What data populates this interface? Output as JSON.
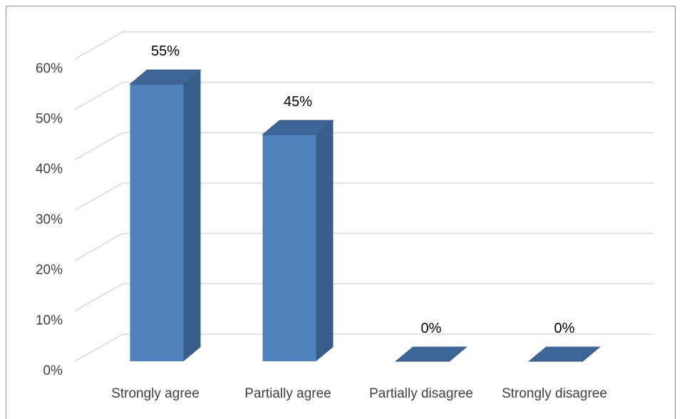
{
  "chart_data": {
    "type": "bar",
    "style": "3d-column",
    "categories": [
      "Strongly agree",
      "Partially agree",
      "Partially disagree",
      "Strongly disagree"
    ],
    "values": [
      55,
      45,
      0,
      0
    ],
    "data_labels": [
      "55%",
      "45%",
      "0%",
      "0%"
    ],
    "y_ticks": [
      "0%",
      "10%",
      "20%",
      "30%",
      "40%",
      "50%",
      "60%"
    ],
    "ylim": [
      0,
      60
    ],
    "grid": true,
    "legend": "none",
    "colors": {
      "bar_front": "#4f81bd",
      "bar_side": "#385d8a",
      "bar_top": "#3e6596",
      "gridline": "#d9d9d9",
      "frame": "#8c8c8c"
    }
  }
}
